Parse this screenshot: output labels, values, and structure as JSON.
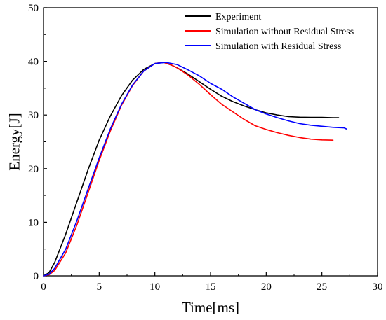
{
  "chart_data": {
    "type": "line",
    "title": "",
    "xlabel": "Time[ms]",
    "ylabel": "Energy[J]",
    "xlim": [
      0,
      30
    ],
    "ylim": [
      0,
      50
    ],
    "xticks": [
      0,
      5,
      10,
      15,
      20,
      25,
      30
    ],
    "yticks": [
      0,
      10,
      20,
      30,
      40,
      50
    ],
    "grid": false,
    "legend_position": "top-right",
    "series": [
      {
        "name": "Experiment",
        "color": "#000000",
        "x": [
          0,
          0.5,
          1,
          2,
          3,
          4,
          5,
          6,
          7,
          8,
          9,
          10,
          10.8,
          11.5,
          12,
          13,
          14,
          15,
          16,
          17,
          18,
          19,
          20,
          21,
          22,
          23,
          24,
          25,
          26,
          26.5
        ],
        "y": [
          0,
          0.6,
          2.5,
          7.8,
          13.8,
          19.8,
          25.3,
          29.8,
          33.6,
          36.5,
          38.5,
          39.6,
          39.8,
          39.3,
          38.8,
          37.6,
          36.2,
          34.8,
          33.5,
          32.5,
          31.7,
          31.0,
          30.4,
          30.0,
          29.7,
          29.6,
          29.55,
          29.55,
          29.5,
          29.5
        ]
      },
      {
        "name": "Simulation without Residual Stress",
        "color": "#ff0000",
        "x": [
          0,
          0.5,
          1,
          2,
          3,
          4,
          5,
          6,
          7,
          8,
          9,
          10,
          10.8,
          11.5,
          12,
          13,
          14,
          15,
          16,
          17,
          18,
          19,
          20,
          21,
          22,
          23,
          24,
          25,
          26
        ],
        "y": [
          0,
          0.2,
          1.0,
          4.3,
          9.5,
          15.5,
          21.5,
          27.0,
          31.8,
          35.5,
          38.2,
          39.6,
          39.8,
          39.3,
          38.8,
          37.4,
          35.7,
          33.8,
          32.0,
          30.6,
          29.2,
          28.0,
          27.3,
          26.7,
          26.2,
          25.8,
          25.5,
          25.35,
          25.3
        ]
      },
      {
        "name": "Simulation with Residual Stress",
        "color": "#0000ff",
        "x": [
          0,
          0.5,
          1,
          2,
          3,
          4,
          5,
          6,
          7,
          8,
          9,
          10,
          11,
          12,
          13,
          14,
          15,
          16,
          17,
          18,
          19,
          20,
          21,
          22,
          23,
          24,
          25,
          26,
          27,
          27.2
        ],
        "y": [
          0,
          0.3,
          1.4,
          5.0,
          10.3,
          16.2,
          22.0,
          27.4,
          32.0,
          35.6,
          38.2,
          39.6,
          39.8,
          39.4,
          38.4,
          37.3,
          35.9,
          34.8,
          33.4,
          32.2,
          31.0,
          30.2,
          29.5,
          28.9,
          28.4,
          28.1,
          27.9,
          27.7,
          27.6,
          27.4
        ]
      }
    ]
  }
}
